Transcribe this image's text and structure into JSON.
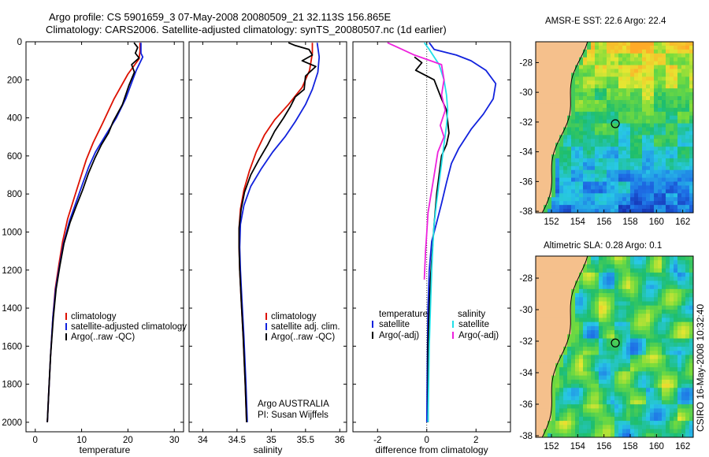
{
  "header": {
    "line1": "Argo profile: CS 5901659_3 07-May-2008 20080509_21 32.113S 156.865E",
    "line2": "Climatology: CARS2006. Satellite-adjusted climatology: synTS_20080507.nc (1d earlier)"
  },
  "side_credit": "CSIRO 16-May-2008 10:32:40",
  "colors": {
    "clim": "#dd1100",
    "sat": "#1122dd",
    "argo": "#000000",
    "cyan": "#22e0e8",
    "magenta": "#ee22dd",
    "land": "#f5c08c"
  },
  "chart_data": [
    {
      "id": "temperature",
      "type": "line",
      "xlabel": "temperature",
      "ylabel": "",
      "xlim": [
        -2,
        32
      ],
      "ylim": [
        2050,
        0
      ],
      "xticks": [
        "0",
        "10",
        "20",
        "30"
      ],
      "xtick_values": [
        0,
        10,
        20,
        30
      ],
      "yticks": [
        "0",
        "200",
        "400",
        "600",
        "800",
        "1000",
        "1200",
        "1400",
        "1600",
        "1800",
        "2000"
      ],
      "ytick_values": [
        0,
        200,
        400,
        600,
        800,
        1000,
        1200,
        1400,
        1600,
        1800,
        2000
      ],
      "legend": [
        "climatology",
        "satellite-adjusted climatology",
        "Argo(..raw -QC)"
      ],
      "series": [
        {
          "name": "climatology",
          "color": "clim",
          "points": [
            [
              22.6,
              5
            ],
            [
              22.6,
              50
            ],
            [
              22.4,
              90
            ],
            [
              21.5,
              120
            ],
            [
              20,
              170
            ],
            [
              17,
              300
            ],
            [
              14.5,
              430
            ],
            [
              12.5,
              530
            ],
            [
              11,
              620
            ],
            [
              9.7,
              720
            ],
            [
              8.4,
              820
            ],
            [
              7,
              930
            ],
            [
              5.9,
              1050
            ],
            [
              5.1,
              1170
            ],
            [
              4.3,
              1300
            ],
            [
              3.8,
              1450
            ],
            [
              3.3,
              1650
            ],
            [
              2.9,
              1850
            ],
            [
              2.6,
              2000
            ]
          ]
        },
        {
          "name": "satellite",
          "color": "sat",
          "points": [
            [
              22.8,
              5
            ],
            [
              22.8,
              60
            ],
            [
              23.2,
              80
            ],
            [
              21.8,
              150
            ],
            [
              19.5,
              300
            ],
            [
              17.5,
              400
            ],
            [
              15.2,
              490
            ],
            [
              13,
              580
            ],
            [
              11.5,
              660
            ],
            [
              10.3,
              740
            ],
            [
              9,
              830
            ],
            [
              7.4,
              940
            ],
            [
              6.1,
              1060
            ],
            [
              5.2,
              1180
            ],
            [
              4.4,
              1300
            ],
            [
              3.8,
              1450
            ],
            [
              3.3,
              1650
            ],
            [
              2.9,
              1850
            ],
            [
              2.6,
              2000
            ]
          ]
        },
        {
          "name": "argo",
          "color": "argo",
          "points": [
            [
              21.3,
              5
            ],
            [
              22.1,
              30
            ],
            [
              21.6,
              60
            ],
            [
              22.4,
              85
            ],
            [
              20.8,
              120
            ],
            [
              21.4,
              160
            ],
            [
              20.2,
              230
            ],
            [
              18.8,
              330
            ],
            [
              16.8,
              420
            ],
            [
              15.8,
              480
            ],
            [
              14.3,
              540
            ],
            [
              12.9,
              610
            ],
            [
              11.5,
              690
            ],
            [
              10.2,
              780
            ],
            [
              8.9,
              860
            ],
            [
              7.5,
              950
            ],
            [
              6.2,
              1060
            ],
            [
              5.3,
              1180
            ],
            [
              4.5,
              1300
            ],
            [
              3.9,
              1450
            ],
            [
              3.3,
              1650
            ],
            [
              2.9,
              1850
            ],
            [
              2.6,
              2000
            ]
          ]
        }
      ]
    },
    {
      "id": "salinity",
      "type": "line",
      "xlabel": "salinity",
      "xlim": [
        33.8,
        36.1
      ],
      "ylim": [
        2050,
        0
      ],
      "xticks": [
        "34",
        "34.5",
        "35",
        "35.5",
        "36"
      ],
      "xtick_values": [
        34,
        34.5,
        35,
        35.5,
        36
      ],
      "legend": [
        "climatology",
        "satellite adj. clim.",
        "Argo(..raw -QC)"
      ],
      "annotation": [
        "Argo AUSTRALIA",
        "PI: Susan Wijffels"
      ],
      "series": [
        {
          "name": "climatology",
          "color": "clim",
          "points": [
            [
              35.6,
              5
            ],
            [
              35.6,
              60
            ],
            [
              35.56,
              150
            ],
            [
              35.45,
              240
            ],
            [
              35.25,
              330
            ],
            [
              35.05,
              410
            ],
            [
              34.9,
              490
            ],
            [
              34.78,
              580
            ],
            [
              34.68,
              680
            ],
            [
              34.6,
              780
            ],
            [
              34.55,
              880
            ],
            [
              34.53,
              980
            ],
            [
              34.53,
              1080
            ],
            [
              34.54,
              1200
            ],
            [
              34.56,
              1350
            ],
            [
              34.59,
              1550
            ],
            [
              34.62,
              1800
            ],
            [
              34.64,
              2000
            ]
          ]
        },
        {
          "name": "satellite",
          "color": "sat",
          "points": [
            [
              35.67,
              5
            ],
            [
              35.7,
              80
            ],
            [
              35.68,
              160
            ],
            [
              35.6,
              250
            ],
            [
              35.5,
              330
            ],
            [
              35.35,
              420
            ],
            [
              35.2,
              500
            ],
            [
              35.02,
              580
            ],
            [
              34.85,
              670
            ],
            [
              34.7,
              760
            ],
            [
              34.6,
              860
            ],
            [
              34.55,
              960
            ],
            [
              34.54,
              1080
            ],
            [
              34.55,
              1200
            ],
            [
              34.57,
              1350
            ],
            [
              34.6,
              1550
            ],
            [
              34.63,
              1800
            ],
            [
              34.65,
              2000
            ]
          ]
        },
        {
          "name": "argo",
          "color": "argo",
          "points": [
            [
              35.25,
              5
            ],
            [
              35.35,
              20
            ],
            [
              35.55,
              40
            ],
            [
              35.6,
              70
            ],
            [
              35.45,
              100
            ],
            [
              35.65,
              130
            ],
            [
              35.5,
              180
            ],
            [
              35.48,
              250
            ],
            [
              35.35,
              290
            ],
            [
              35.28,
              340
            ],
            [
              35.18,
              400
            ],
            [
              35.05,
              470
            ],
            [
              34.95,
              540
            ],
            [
              34.82,
              620
            ],
            [
              34.7,
              700
            ],
            [
              34.61,
              790
            ],
            [
              34.56,
              880
            ],
            [
              34.53,
              980
            ],
            [
              34.53,
              1080
            ],
            [
              34.54,
              1200
            ],
            [
              34.56,
              1350
            ],
            [
              34.59,
              1550
            ],
            [
              34.62,
              1800
            ],
            [
              34.64,
              2000
            ]
          ]
        }
      ]
    },
    {
      "id": "difference",
      "type": "line",
      "xlabel": "difference from climatology",
      "xlim": [
        -3,
        3.4
      ],
      "ylim": [
        2050,
        0
      ],
      "xticks": [
        "-2",
        "0",
        "2"
      ],
      "xtick_values": [
        -2,
        0,
        2
      ],
      "legend_left_title": "temperature",
      "legend_right_title": "salinity",
      "legend_left": [
        "satellite",
        "Argo(-adj)"
      ],
      "legend_right": [
        "satellite",
        "Argo(-adj)"
      ],
      "series": [
        {
          "name": "temp satellite",
          "color": "sat",
          "points": [
            [
              0.1,
              5
            ],
            [
              0.3,
              40
            ],
            [
              1.2,
              70
            ],
            [
              1.8,
              100
            ],
            [
              2.4,
              150
            ],
            [
              2.8,
              220
            ],
            [
              2.7,
              300
            ],
            [
              2.3,
              380
            ],
            [
              1.8,
              460
            ],
            [
              1.3,
              560
            ],
            [
              1.0,
              640
            ],
            [
              0.8,
              740
            ],
            [
              0.6,
              850
            ],
            [
              0.4,
              950
            ],
            [
              0.2,
              1050
            ],
            [
              0.1,
              1200
            ],
            [
              0.05,
              1400
            ],
            [
              0.02,
              1700
            ],
            [
              0.0,
              2000
            ]
          ]
        },
        {
          "name": "temp argo",
          "color": "argo",
          "points": [
            [
              -0.5,
              80
            ],
            [
              -0.2,
              110
            ],
            [
              -0.45,
              150
            ],
            [
              0.3,
              200
            ],
            [
              0.45,
              250
            ],
            [
              0.6,
              300
            ],
            [
              0.8,
              360
            ],
            [
              0.85,
              420
            ],
            [
              0.9,
              480
            ],
            [
              0.8,
              540
            ],
            [
              0.6,
              600
            ],
            [
              0.55,
              650
            ],
            [
              0.5,
              700
            ],
            [
              0.4,
              800
            ],
            [
              0.35,
              880
            ],
            [
              0.3,
              960
            ],
            [
              0.25,
              1050
            ],
            [
              0.2,
              1150
            ],
            [
              0.15,
              1250
            ],
            [
              0.1,
              1400
            ],
            [
              0.05,
              1600
            ],
            [
              0.05,
              2000
            ]
          ]
        },
        {
          "name": "sal satellite",
          "color": "cyan",
          "points": [
            [
              -0.1,
              5
            ],
            [
              0.1,
              40
            ],
            [
              0.5,
              120
            ],
            [
              0.7,
              200
            ],
            [
              0.8,
              280
            ],
            [
              0.85,
              360
            ],
            [
              0.8,
              440
            ],
            [
              0.7,
              540
            ],
            [
              0.6,
              640
            ],
            [
              0.5,
              740
            ],
            [
              0.4,
              840
            ],
            [
              0.3,
              960
            ],
            [
              0.25,
              1060
            ],
            [
              0.2,
              1200
            ],
            [
              0.15,
              1400
            ],
            [
              0.1,
              1600
            ],
            [
              0.05,
              2000
            ]
          ]
        },
        {
          "name": "sal argo",
          "color": "magenta",
          "points": [
            [
              -1.6,
              5
            ],
            [
              -1.0,
              40
            ],
            [
              -0.5,
              70
            ],
            [
              0.6,
              120
            ],
            [
              0.7,
              200
            ],
            [
              0.6,
              280
            ],
            [
              0.75,
              360
            ],
            [
              0.55,
              440
            ],
            [
              0.7,
              500
            ],
            [
              0.45,
              580
            ],
            [
              0.35,
              660
            ],
            [
              0.25,
              740
            ],
            [
              0.15,
              820
            ],
            [
              0.05,
              900
            ],
            [
              0.0,
              1000
            ],
            [
              -0.05,
              1100
            ],
            [
              -0.1,
              1250
            ]
          ]
        }
      ]
    }
  ],
  "maps": [
    {
      "id": "sst-map",
      "title": "AMSR-E SST: 22.6 Argo: 22.4",
      "style": "sst",
      "xticks": [
        "152",
        "154",
        "156",
        "158",
        "160",
        "162"
      ],
      "yticks": [
        "-28",
        "-30",
        "-32",
        "-34",
        "-36",
        "-38"
      ],
      "profile_lon": 156.865,
      "profile_lat": -32.113
    },
    {
      "id": "sla-map",
      "title": "Altimetric SLA: 0.28 Argo: 0.1",
      "style": "sla",
      "xticks": [
        "152",
        "154",
        "156",
        "158",
        "160",
        "162"
      ],
      "yticks": [
        "-28",
        "-30",
        "-32",
        "-34",
        "-36",
        "-38"
      ],
      "profile_lon": 156.865,
      "profile_lat": -32.113
    }
  ]
}
